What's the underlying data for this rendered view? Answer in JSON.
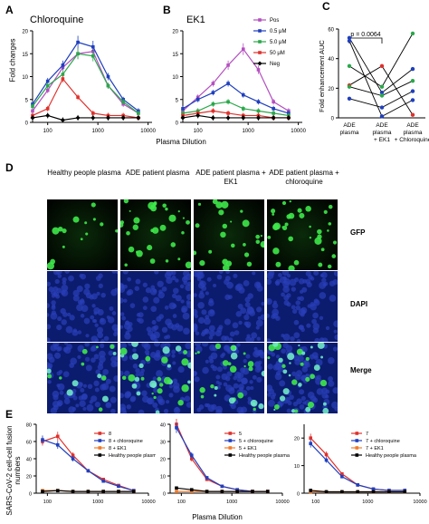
{
  "panels": {
    "A": {
      "letter": "A",
      "title": "Chloroquine"
    },
    "B": {
      "letter": "B",
      "title": "EK1"
    },
    "C": {
      "letter": "C"
    },
    "D": {
      "letter": "D"
    },
    "E": {
      "letter": "E"
    }
  },
  "shared_labels": {
    "ab_ylabel": "Fold changes",
    "ab_xlabel": "Plasma Dilution",
    "e_ylabel": "SARS-CoV-2 cell-cell fusion numbers",
    "e_xlabel": "Plasma Dilution"
  },
  "legend_ab": [
    {
      "label": "Pos",
      "color": "#b44fc0",
      "marker": "square"
    },
    {
      "label": "0.5 μM",
      "color": "#1f3fbf",
      "marker": "square"
    },
    {
      "label": "5.0 μM",
      "color": "#2aa84a",
      "marker": "square"
    },
    {
      "label": "50 μM",
      "color": "#e0302b",
      "marker": "square"
    },
    {
      "label": "Neg",
      "color": "#000000",
      "marker": "diamond"
    }
  ],
  "panel_c": {
    "ylabel": "Fold enhancement AUC",
    "pvalue": "p = 0.0064",
    "categories": [
      "ADE plasma",
      "ADE plasma + EK1",
      "ADE plasma + Chloroquine"
    ]
  },
  "panel_d": {
    "columns": [
      "Healthy people plasma",
      "ADE patient plasma",
      "ADE patient plasma + EK1",
      "ADE patient plasma + chloroquine"
    ],
    "rows": [
      "GFP",
      "DAPI",
      "Merge"
    ]
  },
  "colors": {
    "pos": "#b44fc0",
    "low": "#1f3fbf",
    "mid": "#2aa84a",
    "high": "#e0302b",
    "neg": "#000000",
    "orange": "#f07a2a"
  },
  "chart_data": [
    {
      "type": "line",
      "title": "Chloroquine",
      "xlabel": "Plasma Dilution",
      "ylabel": "Fold changes",
      "xscale": "log",
      "xlim": [
        50,
        12000
      ],
      "ylim": [
        0,
        20
      ],
      "xticks": [
        100,
        1000,
        10000
      ],
      "yticks": [
        0,
        5,
        10,
        15,
        20
      ],
      "x": [
        50,
        100,
        200,
        400,
        800,
        1600,
        3200,
        6400
      ],
      "series": [
        {
          "name": "Pos",
          "color": "#b44fc0",
          "values": [
            2.5,
            7.0,
            12.0,
            15.0,
            15.5,
            8.0,
            4.0,
            2.0
          ]
        },
        {
          "name": "0.5 μM",
          "color": "#1f3fbf",
          "values": [
            4.0,
            9.0,
            12.5,
            17.5,
            16.5,
            10.0,
            5.0,
            2.5
          ]
        },
        {
          "name": "5.0 μM",
          "color": "#2aa84a",
          "values": [
            3.5,
            8.0,
            10.5,
            15.0,
            14.5,
            8.0,
            4.5,
            2.0
          ]
        },
        {
          "name": "50 μM",
          "color": "#e0302b",
          "values": [
            1.5,
            3.0,
            9.5,
            5.5,
            2.0,
            1.5,
            1.5,
            1.0
          ]
        },
        {
          "name": "Neg",
          "color": "#000000",
          "values": [
            1.0,
            1.5,
            0.5,
            1.0,
            1.0,
            1.0,
            1.0,
            1.0
          ]
        }
      ]
    },
    {
      "type": "line",
      "title": "EK1",
      "xlabel": "Plasma Dilution",
      "ylabel": "Fold changes",
      "xscale": "log",
      "xlim": [
        50,
        12000
      ],
      "ylim": [
        0,
        20
      ],
      "xticks": [
        100,
        1000,
        10000
      ],
      "yticks": [
        0,
        5,
        10,
        15,
        20
      ],
      "x": [
        50,
        100,
        200,
        400,
        800,
        1600,
        3200,
        6400
      ],
      "series": [
        {
          "name": "Pos",
          "color": "#b44fc0",
          "values": [
            2.5,
            5.5,
            8.5,
            12.5,
            16.0,
            11.5,
            4.5,
            2.5
          ]
        },
        {
          "name": "0.5 μM",
          "color": "#1f3fbf",
          "values": [
            3.0,
            5.0,
            6.5,
            8.5,
            6.0,
            4.5,
            3.0,
            2.0
          ]
        },
        {
          "name": "5.0 μM",
          "color": "#2aa84a",
          "values": [
            2.0,
            2.5,
            4.0,
            4.5,
            3.0,
            2.5,
            2.0,
            1.5
          ]
        },
        {
          "name": "50 μM",
          "color": "#e0302b",
          "values": [
            1.5,
            2.0,
            2.5,
            2.0,
            1.5,
            1.5,
            1.0,
            1.0
          ]
        },
        {
          "name": "Neg",
          "color": "#000000",
          "values": [
            1.0,
            1.5,
            1.0,
            1.0,
            1.0,
            1.0,
            1.0,
            1.0
          ]
        }
      ]
    },
    {
      "type": "scatter",
      "ylabel": "Fold enhancement AUC",
      "categories": [
        "ADE plasma",
        "ADE plasma + EK1",
        "ADE plasma + Chloroquine"
      ],
      "ylim": [
        0,
        60
      ],
      "yticks": [
        0,
        20,
        40,
        60
      ],
      "pvalue": "p = 0.0064",
      "series": [
        {
          "color": "#2aa84a",
          "values": [
            35,
            21,
            57
          ]
        },
        {
          "color": "#1f3fbf",
          "values": [
            54,
            17,
            33
          ]
        },
        {
          "color": "#e0302b",
          "values": [
            22,
            35,
            2
          ]
        },
        {
          "color": "#1f3fbf",
          "values": [
            13,
            7,
            18
          ]
        },
        {
          "color": "#2aa84a",
          "values": [
            21,
            15,
            25
          ]
        },
        {
          "color": "#1f3fbf",
          "values": [
            52,
            1,
            12
          ]
        }
      ]
    },
    {
      "type": "line",
      "xscale": "log",
      "xlim": [
        60,
        10000
      ],
      "ylim": [
        0,
        80
      ],
      "yticks": [
        0,
        20,
        40,
        60,
        80
      ],
      "xticks": [
        100,
        1000,
        10000
      ],
      "x": [
        80,
        160,
        320,
        640,
        1280,
        2560,
        5120
      ],
      "series": [
        {
          "name": "8",
          "color": "#e0302b",
          "values": [
            60,
            66,
            44,
            26,
            16,
            9,
            3
          ]
        },
        {
          "name": "8 + chloroquine",
          "color": "#1f3fbf",
          "values": [
            62,
            56,
            40,
            26,
            14,
            8,
            3
          ]
        },
        {
          "name": "8 + EK1",
          "color": "#f07a2a",
          "values": [
            3,
            3,
            2,
            2,
            2,
            2,
            2
          ]
        },
        {
          "name": "Healthy people plasma",
          "color": "#000000",
          "values": [
            2,
            3,
            2,
            2,
            2,
            2,
            2
          ]
        }
      ]
    },
    {
      "type": "line",
      "xscale": "log",
      "xlim": [
        60,
        10000
      ],
      "ylim": [
        0,
        40
      ],
      "yticks": [
        0,
        10,
        20,
        30,
        40
      ],
      "xticks": [
        100,
        1000,
        10000
      ],
      "x": [
        80,
        160,
        320,
        640,
        1280,
        2560,
        5120
      ],
      "series": [
        {
          "name": "5",
          "color": "#e0302b",
          "values": [
            40,
            20,
            8,
            4,
            2,
            1,
            1
          ]
        },
        {
          "name": "5 + chloroquine",
          "color": "#1f3fbf",
          "values": [
            38,
            22,
            9,
            4,
            2,
            1,
            1
          ]
        },
        {
          "name": "5 + EK1",
          "color": "#f07a2a",
          "values": [
            1,
            1,
            1,
            1,
            1,
            1,
            1
          ]
        },
        {
          "name": "Healthy people plasma",
          "color": "#000000",
          "values": [
            3,
            2,
            1,
            1,
            1,
            1,
            1
          ]
        }
      ]
    },
    {
      "type": "line",
      "xscale": "log",
      "xlim": [
        60,
        10000
      ],
      "ylim": [
        0,
        25
      ],
      "yticks": [
        0,
        10,
        20
      ],
      "xticks": [
        100,
        1000,
        10000
      ],
      "x": [
        80,
        160,
        320,
        640,
        1280,
        2560,
        5120
      ],
      "series": [
        {
          "name": "7",
          "color": "#e0302b",
          "values": [
            20,
            14,
            7,
            3,
            1.5,
            1,
            1
          ]
        },
        {
          "name": "7 + chloroquine",
          "color": "#1f3fbf",
          "values": [
            18,
            12,
            6,
            3,
            1.5,
            1,
            1
          ]
        },
        {
          "name": "7 + EK1",
          "color": "#f07a2a",
          "values": [
            0.5,
            0.5,
            0.5,
            0.5,
            0.5,
            0.5,
            0.5
          ]
        },
        {
          "name": "Healthy people plasma",
          "color": "#000000",
          "values": [
            1,
            0.5,
            0.5,
            0.5,
            0.5,
            0.5,
            0.5
          ]
        }
      ]
    }
  ]
}
